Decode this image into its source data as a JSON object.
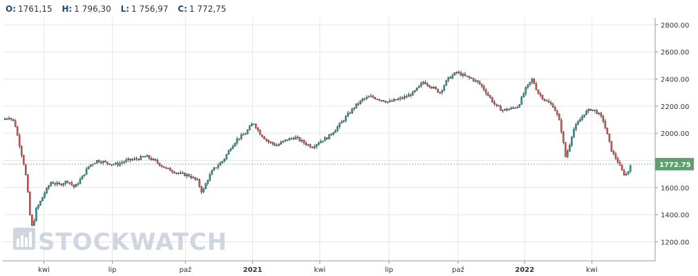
{
  "ohlc_bar": {
    "open_label": "O:",
    "open_value": "1761,15",
    "high_label": "H:",
    "high_value": "1 796,30",
    "low_label": "L:",
    "low_value": "1 756,97",
    "close_label": "C:",
    "close_value": "1 772,75"
  },
  "watermark": {
    "text": "STOCKWATCH"
  },
  "colors": {
    "up": "#26a69a",
    "down": "#ef5350",
    "wick": "#222222",
    "grid": "#e6e6e6",
    "price_tag": "#5f9f6f",
    "price_line": "#8bbf9a",
    "ohlc_label": "#1c4a80"
  },
  "chart_data": {
    "type": "candlestick",
    "ylim": [
      1060,
      2850
    ],
    "y_ticks": [
      1200,
      1400,
      1600,
      1800,
      2000,
      2200,
      2400,
      2600,
      2800
    ],
    "y_tick_labels": [
      "1200.00",
      "1400.00",
      "1600.00",
      "1800.00",
      "2000.00",
      "2200.00",
      "2400.00",
      "2600.00",
      "2800.00"
    ],
    "x_labels": [
      {
        "label": "kwi",
        "bold": false,
        "t": 0.063
      },
      {
        "label": "lip",
        "bold": false,
        "t": 0.168
      },
      {
        "label": "paź",
        "bold": false,
        "t": 0.28
      },
      {
        "label": "2021",
        "bold": true,
        "t": 0.383
      },
      {
        "label": "kwi",
        "bold": false,
        "t": 0.486
      },
      {
        "label": "lip",
        "bold": false,
        "t": 0.592
      },
      {
        "label": "paź",
        "bold": false,
        "t": 0.698
      },
      {
        "label": "2022",
        "bold": true,
        "t": 0.8
      },
      {
        "label": "kwi",
        "bold": false,
        "t": 0.903
      }
    ],
    "last_price": 1772.75,
    "last_price_label": "1772.75",
    "price_path": [
      [
        0.0,
        2100
      ],
      [
        0.01,
        2120
      ],
      [
        0.018,
        2080
      ],
      [
        0.024,
        1950
      ],
      [
        0.03,
        1820
      ],
      [
        0.034,
        1740
      ],
      [
        0.038,
        1580
      ],
      [
        0.042,
        1380
      ],
      [
        0.046,
        1290
      ],
      [
        0.05,
        1430
      ],
      [
        0.056,
        1480
      ],
      [
        0.064,
        1560
      ],
      [
        0.074,
        1640
      ],
      [
        0.086,
        1620
      ],
      [
        0.1,
        1650
      ],
      [
        0.11,
        1600
      ],
      [
        0.122,
        1680
      ],
      [
        0.132,
        1760
      ],
      [
        0.145,
        1800
      ],
      [
        0.16,
        1780
      ],
      [
        0.175,
        1770
      ],
      [
        0.19,
        1800
      ],
      [
        0.205,
        1810
      ],
      [
        0.22,
        1830
      ],
      [
        0.235,
        1790
      ],
      [
        0.25,
        1740
      ],
      [
        0.262,
        1720
      ],
      [
        0.272,
        1700
      ],
      [
        0.285,
        1690
      ],
      [
        0.298,
        1650
      ],
      [
        0.306,
        1560
      ],
      [
        0.312,
        1640
      ],
      [
        0.322,
        1730
      ],
      [
        0.338,
        1800
      ],
      [
        0.35,
        1900
      ],
      [
        0.36,
        1960
      ],
      [
        0.372,
        2000
      ],
      [
        0.384,
        2080
      ],
      [
        0.394,
        2000
      ],
      [
        0.406,
        1940
      ],
      [
        0.42,
        1910
      ],
      [
        0.434,
        1950
      ],
      [
        0.448,
        1970
      ],
      [
        0.462,
        1930
      ],
      [
        0.474,
        1900
      ],
      [
        0.486,
        1940
      ],
      [
        0.498,
        1970
      ],
      [
        0.512,
        2040
      ],
      [
        0.526,
        2120
      ],
      [
        0.54,
        2200
      ],
      [
        0.552,
        2250
      ],
      [
        0.564,
        2270
      ],
      [
        0.578,
        2250
      ],
      [
        0.592,
        2230
      ],
      [
        0.606,
        2250
      ],
      [
        0.618,
        2270
      ],
      [
        0.63,
        2300
      ],
      [
        0.645,
        2380
      ],
      [
        0.658,
        2340
      ],
      [
        0.67,
        2300
      ],
      [
        0.682,
        2400
      ],
      [
        0.696,
        2450
      ],
      [
        0.708,
        2420
      ],
      [
        0.72,
        2400
      ],
      [
        0.732,
        2360
      ],
      [
        0.744,
        2280
      ],
      [
        0.756,
        2200
      ],
      [
        0.766,
        2170
      ],
      [
        0.778,
        2180
      ],
      [
        0.79,
        2200
      ],
      [
        0.802,
        2330
      ],
      [
        0.812,
        2400
      ],
      [
        0.82,
        2300
      ],
      [
        0.832,
        2240
      ],
      [
        0.844,
        2200
      ],
      [
        0.852,
        2110
      ],
      [
        0.858,
        1980
      ],
      [
        0.862,
        1820
      ],
      [
        0.868,
        1900
      ],
      [
        0.874,
        2020
      ],
      [
        0.882,
        2080
      ],
      [
        0.892,
        2150
      ],
      [
        0.902,
        2180
      ],
      [
        0.912,
        2150
      ],
      [
        0.92,
        2100
      ],
      [
        0.926,
        2000
      ],
      [
        0.934,
        1860
      ],
      [
        0.942,
        1800
      ],
      [
        0.948,
        1730
      ],
      [
        0.954,
        1690
      ],
      [
        0.958,
        1710
      ],
      [
        0.962,
        1772
      ]
    ],
    "candle_count": 300
  }
}
